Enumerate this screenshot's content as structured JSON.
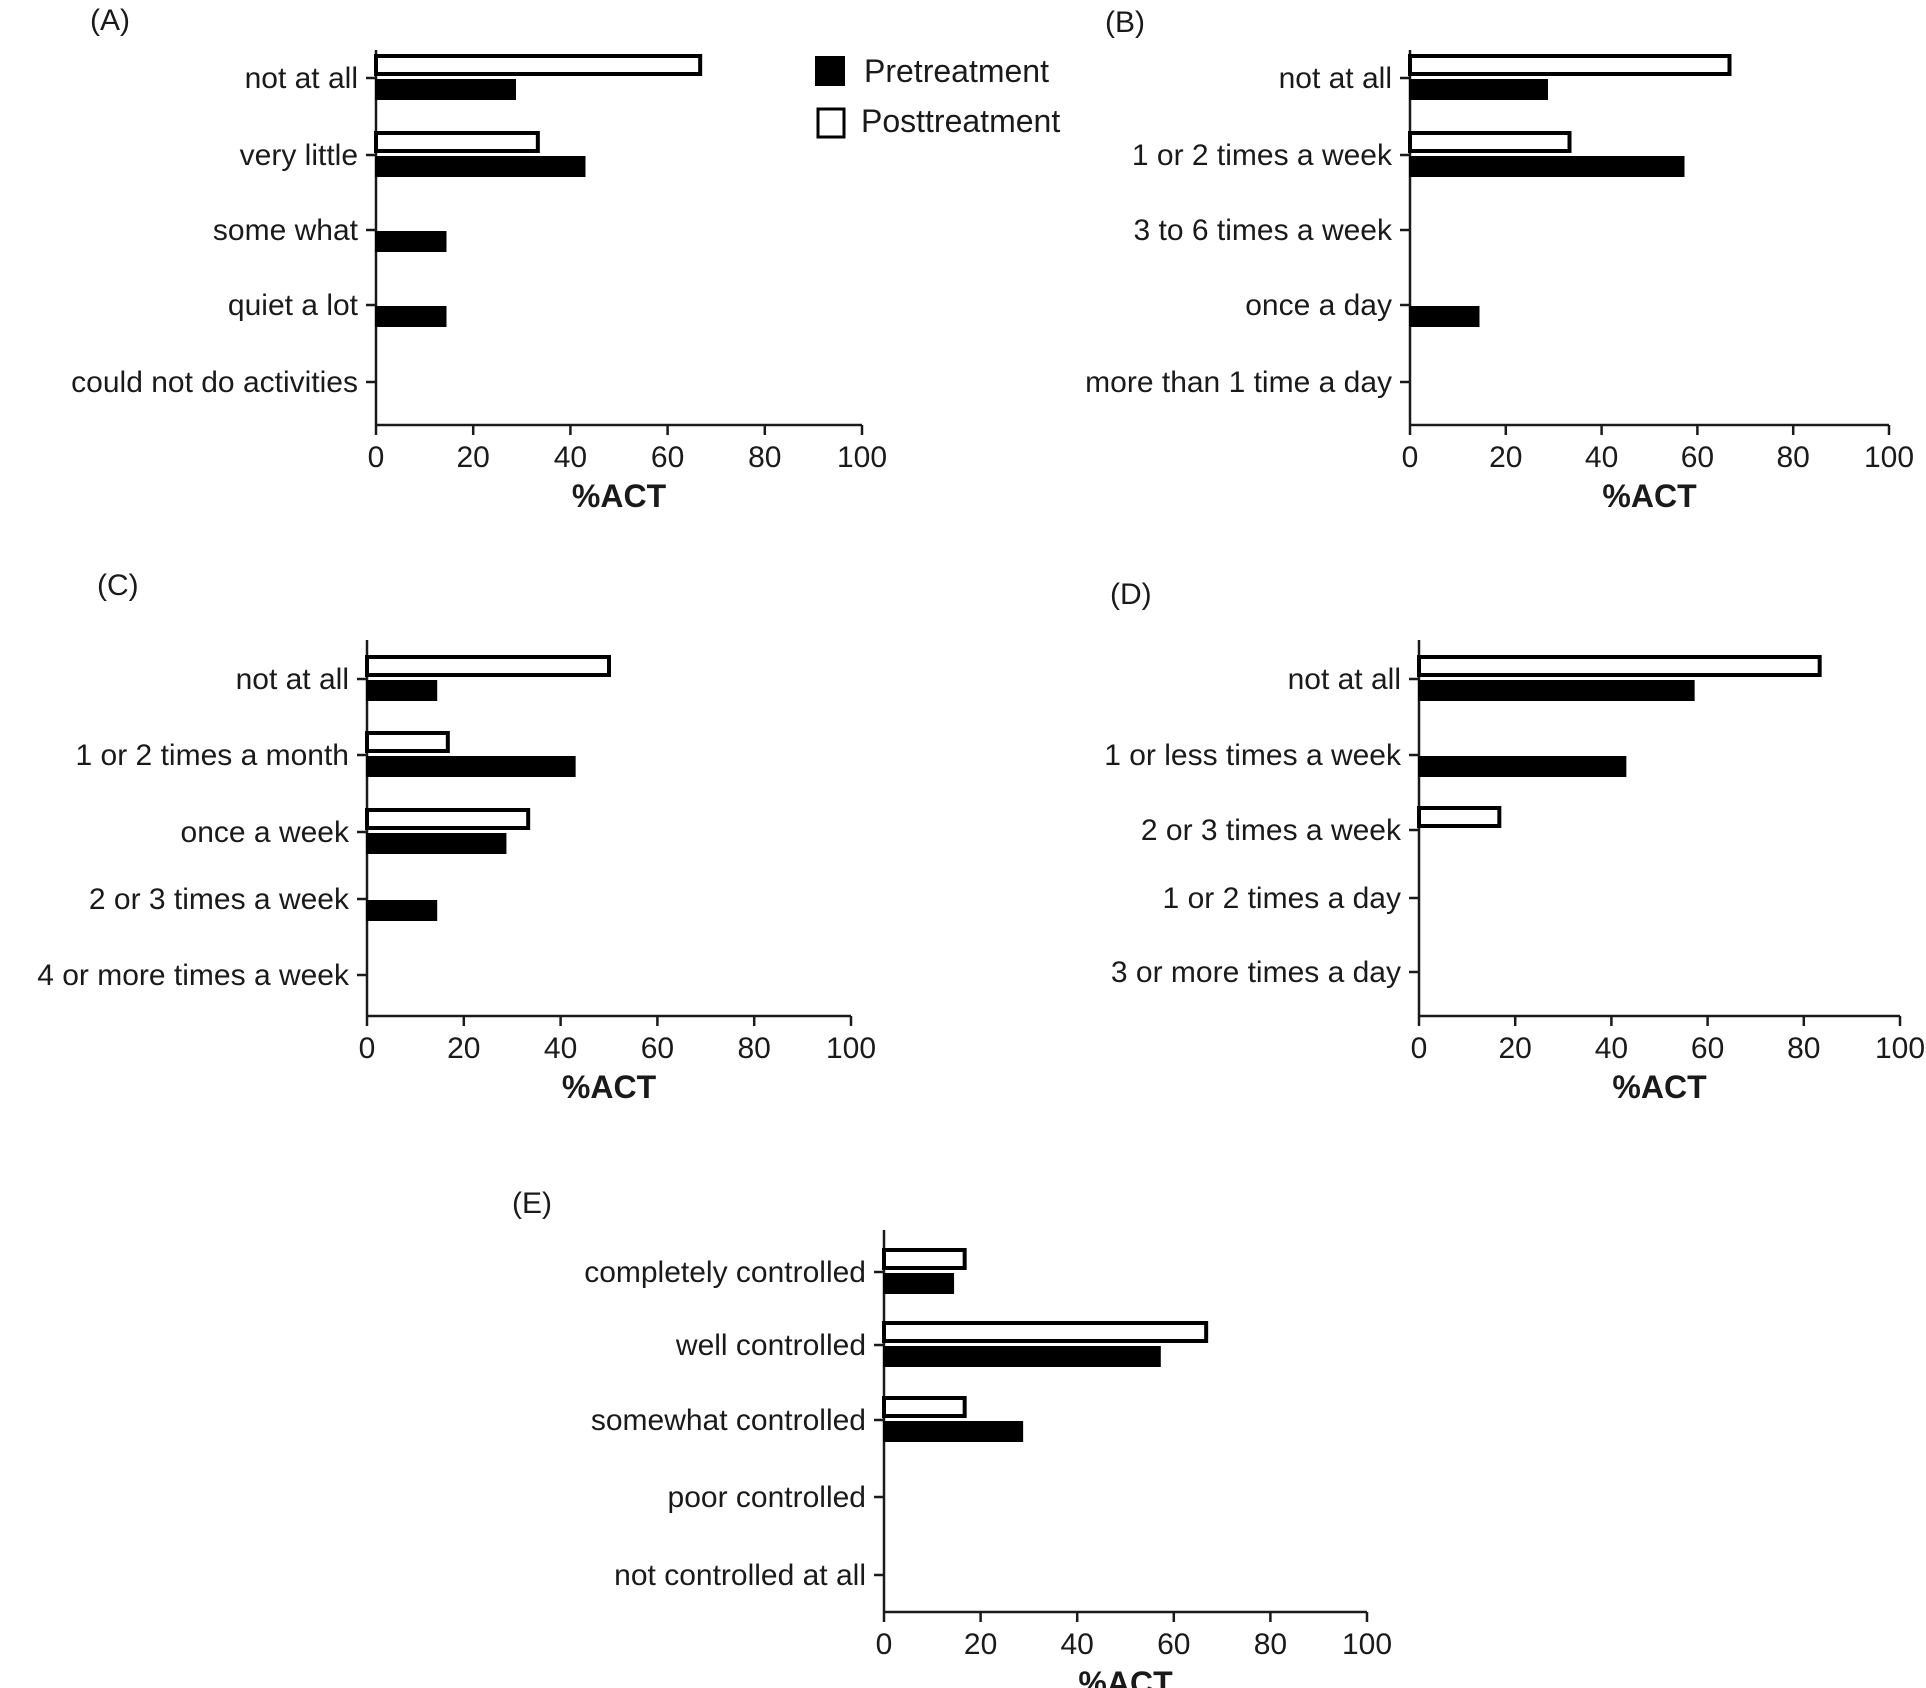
{
  "legend": [
    {
      "name": "Pretreatment",
      "fill": "#000000"
    },
    {
      "name": "Posttreatment",
      "fill": "#ffffff"
    }
  ],
  "chart_data": [
    {
      "panel": "(A)",
      "type": "bar",
      "orientation": "horizontal",
      "categories": [
        "not at all",
        "very little",
        "some what",
        "quiet a lot",
        "could not do activities"
      ],
      "series": [
        {
          "name": "Pretreatment",
          "values": [
            28.6,
            42.9,
            14.3,
            14.3,
            0
          ]
        },
        {
          "name": "Posttreatment",
          "values": [
            66.7,
            33.3,
            0,
            0,
            0
          ]
        }
      ],
      "xlabel": "%ACT",
      "xlim": [
        0,
        100
      ],
      "xticks": [
        "0",
        "20",
        "40",
        "60",
        "80",
        "100"
      ]
    },
    {
      "panel": "(B)",
      "type": "bar",
      "orientation": "horizontal",
      "categories": [
        "not at all",
        "1 or 2 times a week",
        "3 to 6 times a week",
        "once a day",
        "more than 1 time a day"
      ],
      "series": [
        {
          "name": "Pretreatment",
          "values": [
            28.6,
            57.1,
            0,
            14.3,
            0
          ]
        },
        {
          "name": "Posttreatment",
          "values": [
            66.7,
            33.3,
            0,
            0,
            0
          ]
        }
      ],
      "xlabel": "%ACT",
      "xlim": [
        0,
        100
      ],
      "xticks": [
        "0",
        "20",
        "40",
        "60",
        "80",
        "100"
      ]
    },
    {
      "panel": "(C)",
      "type": "bar",
      "orientation": "horizontal",
      "categories": [
        "not at all",
        "1 or 2 times a month",
        "once a week",
        "2 or 3 times a week",
        "4 or more times a week"
      ],
      "series": [
        {
          "name": "Pretreatment",
          "values": [
            14.3,
            42.9,
            28.6,
            14.3,
            0
          ]
        },
        {
          "name": "Posttreatment",
          "values": [
            50,
            16.7,
            33.3,
            0,
            0
          ]
        }
      ],
      "xlabel": "%ACT",
      "xlim": [
        0,
        100
      ],
      "xticks": [
        "0",
        "20",
        "40",
        "60",
        "80",
        "100"
      ]
    },
    {
      "panel": "(D)",
      "type": "bar",
      "orientation": "horizontal",
      "categories": [
        "not at all",
        "1 or less times a week",
        "2 or 3 times a week",
        "1 or 2 times a day",
        "3 or more times a day"
      ],
      "series": [
        {
          "name": "Pretreatment",
          "values": [
            57.1,
            42.9,
            0,
            0,
            0
          ]
        },
        {
          "name": "Posttreatment",
          "values": [
            83.3,
            0,
            16.7,
            0,
            0
          ]
        }
      ],
      "xlabel": "%ACT",
      "xlim": [
        0,
        100
      ],
      "xticks": [
        "0",
        "20",
        "40",
        "60",
        "80",
        "100"
      ]
    },
    {
      "panel": "(E)",
      "type": "bar",
      "orientation": "horizontal",
      "categories": [
        "completely controlled",
        "well controlled",
        "somewhat controlled",
        "poor controlled",
        "not controlled at all"
      ],
      "series": [
        {
          "name": "Pretreatment",
          "values": [
            14.3,
            57.1,
            28.6,
            0,
            0
          ]
        },
        {
          "name": "Posttreatment",
          "values": [
            16.7,
            66.7,
            16.7,
            0,
            0
          ]
        }
      ],
      "xlabel": "%ACT",
      "xlim": [
        0,
        100
      ],
      "xticks": [
        "0",
        "20",
        "40",
        "60",
        "80",
        "100"
      ]
    }
  ]
}
